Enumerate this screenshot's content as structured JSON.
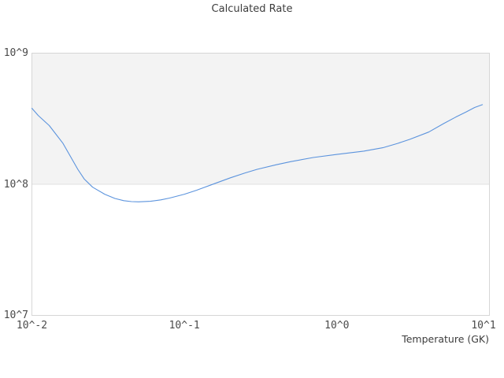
{
  "title": "Calculated Rate",
  "chart_data": {
    "type": "line",
    "title": "Calculated Rate",
    "xlabel": "Temperature (GK)",
    "ylabel": "",
    "x_scale": "log",
    "y_scale": "log",
    "xlim": [
      0.01,
      10
    ],
    "ylim": [
      10000000.0,
      1000000000.0
    ],
    "x_ticks": [
      {
        "label": "10^-2",
        "value": 0.01
      },
      {
        "label": "10^-1",
        "value": 0.1
      },
      {
        "label": "10^0",
        "value": 1
      },
      {
        "label": "10^1",
        "value": 10
      }
    ],
    "y_ticks": [
      {
        "label": "10^7",
        "value": 10000000.0
      },
      {
        "label": "10^8",
        "value": 100000000.0
      },
      {
        "label": "10^9",
        "value": 1000000000.0
      }
    ],
    "legend": "none",
    "grid": "shaded horizontal band between 10^8 and 10^9",
    "colors": {
      "line": "#5b93dd",
      "band": "#f3f3f3",
      "border": "#d6d6d6",
      "grid_line": "#e2e2e2",
      "title_text": "#3d3d3d",
      "tick_text": "#4a4a4a"
    },
    "series": [
      {
        "name": "calculated rate",
        "x": [
          0.01,
          0.011,
          0.013,
          0.016,
          0.02,
          0.022,
          0.025,
          0.03,
          0.035,
          0.04,
          0.045,
          0.05,
          0.06,
          0.07,
          0.08,
          0.1,
          0.12,
          0.15,
          0.2,
          0.25,
          0.3,
          0.4,
          0.5,
          0.7,
          1.0,
          1.5,
          2.0,
          2.5,
          3.0,
          4.0,
          5.0,
          6.0,
          7.0,
          8.0,
          9.0
        ],
        "y": [
          380000000.0,
          335000000.0,
          280000000.0,
          205000000.0,
          130000000.0,
          110000000.0,
          95000000.0,
          84000000.0,
          78000000.0,
          75000000.0,
          73800000.0,
          73500000.0,
          74200000.0,
          76000000.0,
          78500000.0,
          84000000.0,
          90000000.0,
          99000000.0,
          112000000.0,
          122000000.0,
          130000000.0,
          141000000.0,
          149000000.0,
          160000000.0,
          169000000.0,
          179000000.0,
          190000000.0,
          205000000.0,
          220000000.0,
          250000000.0,
          290000000.0,
          325000000.0,
          355000000.0,
          385000000.0,
          405000000.0
        ]
      }
    ]
  }
}
